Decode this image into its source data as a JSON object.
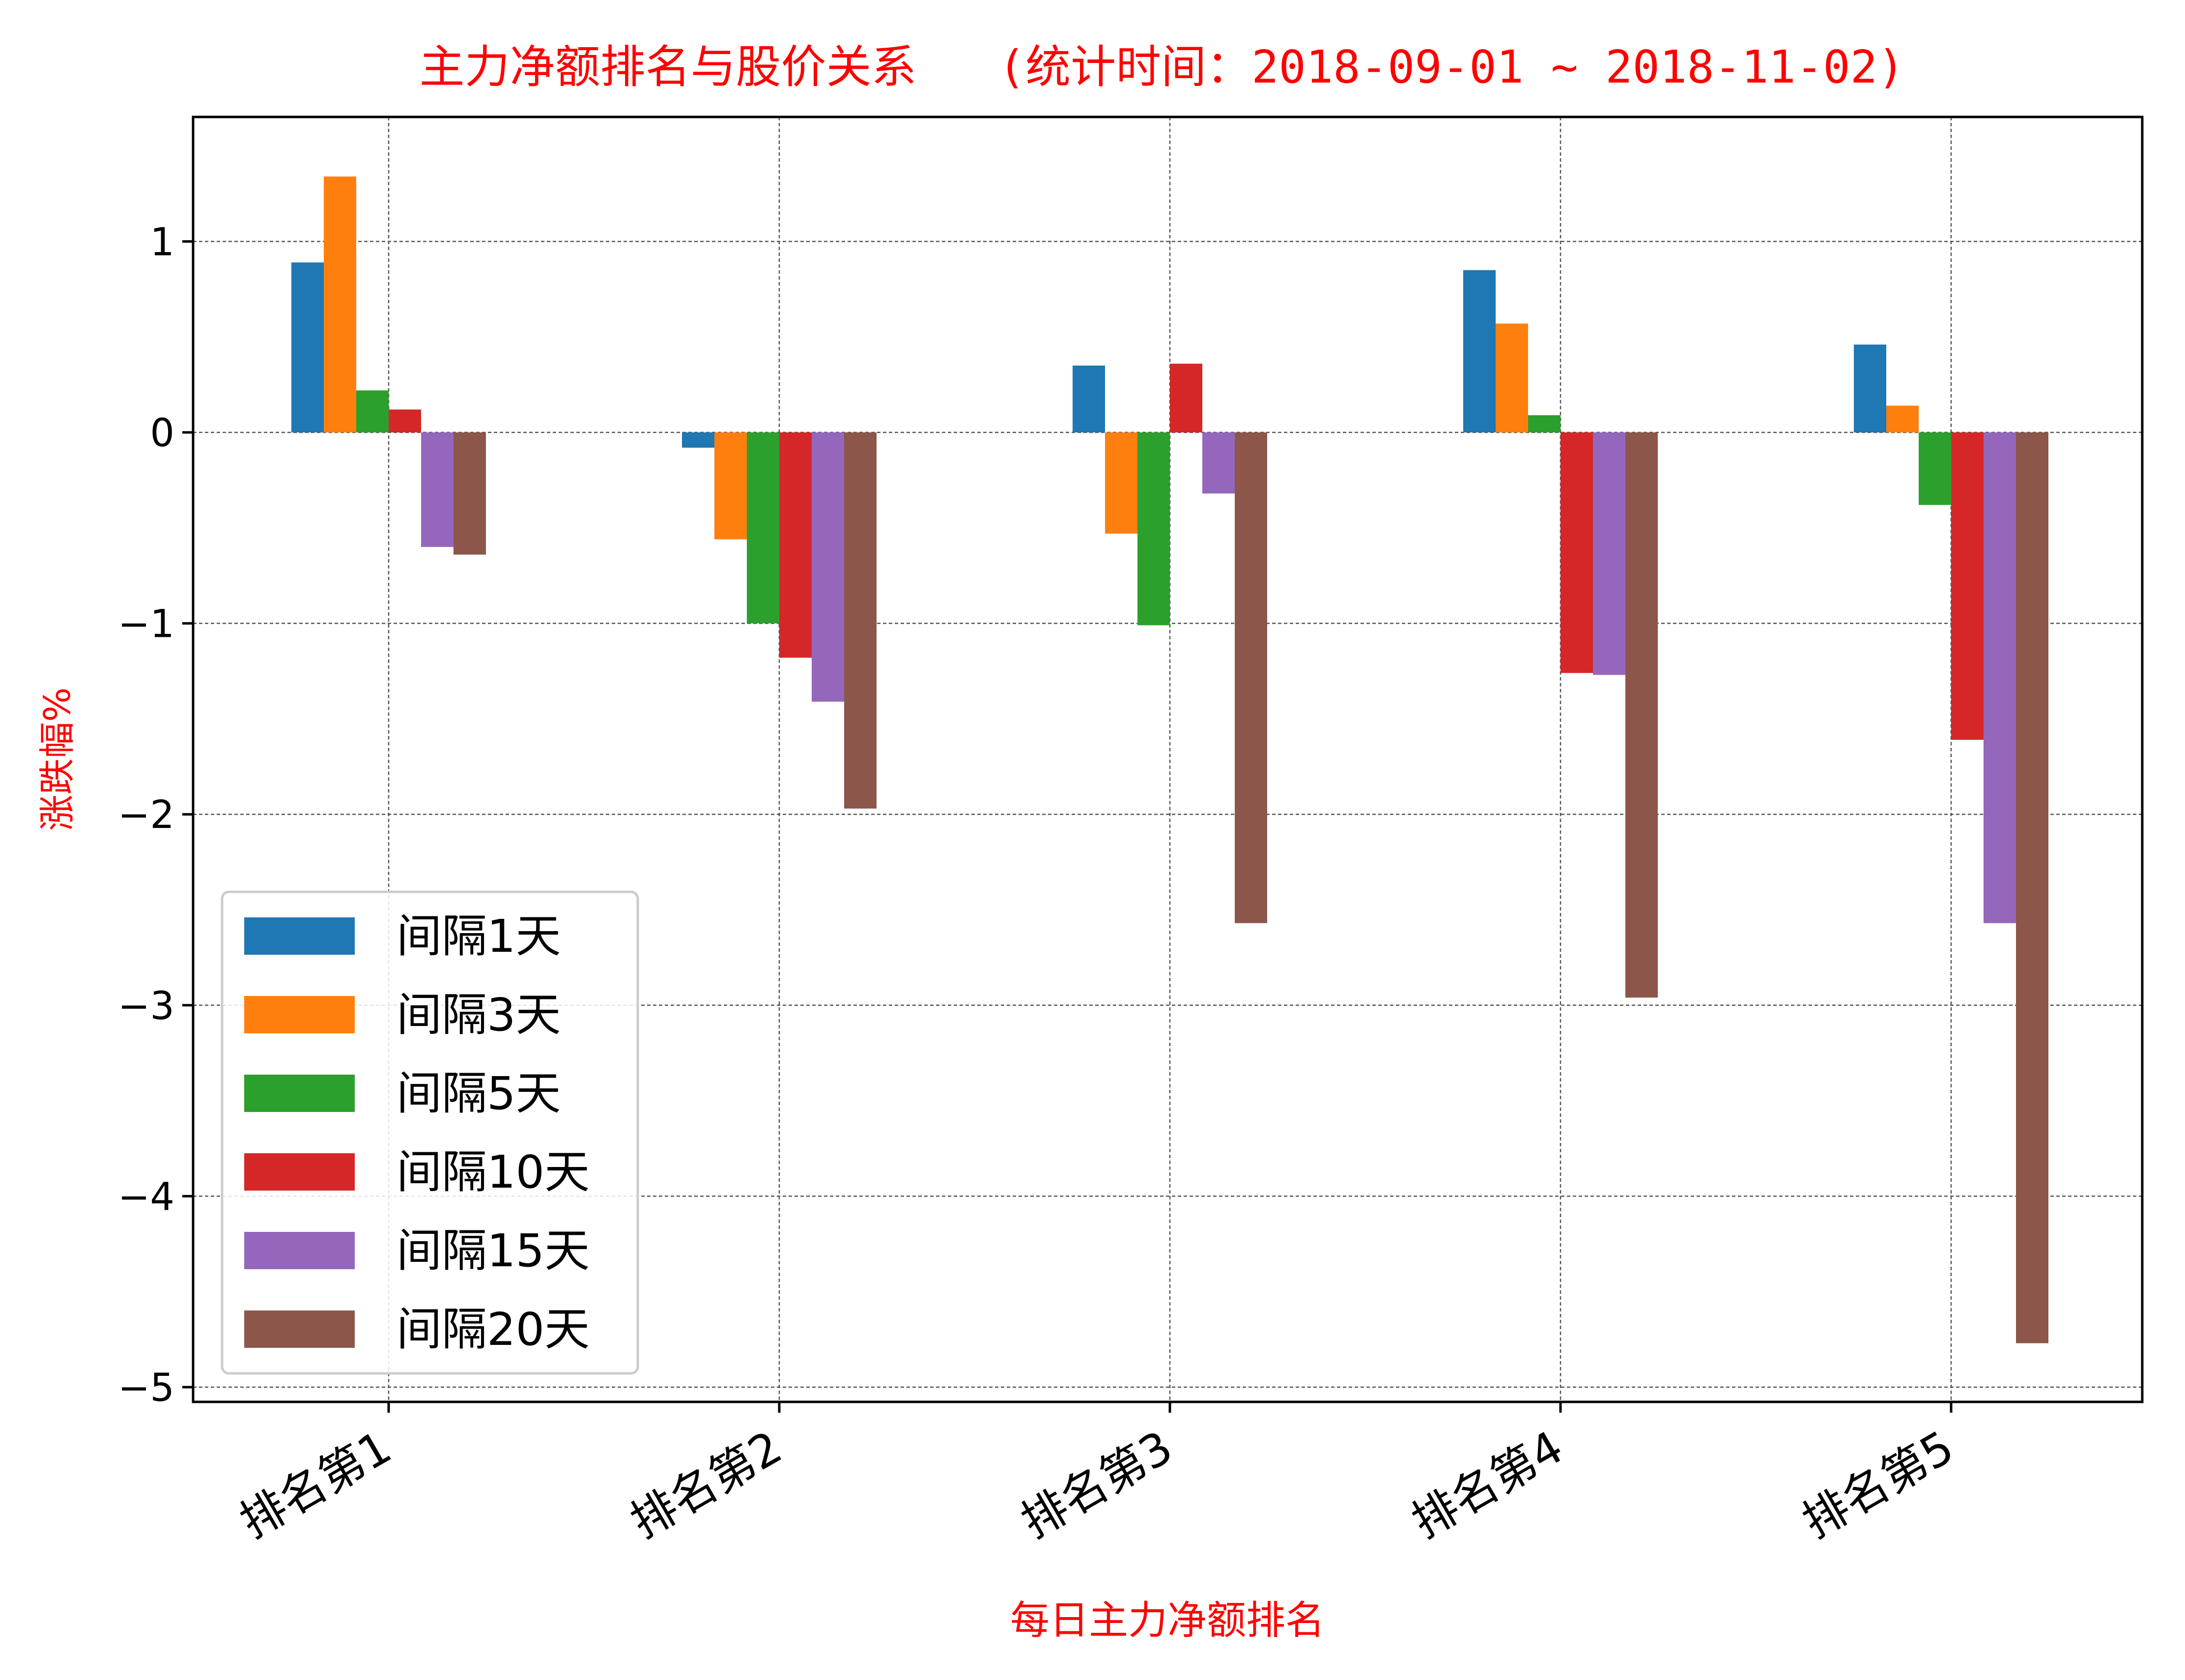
{
  "chart_data": {
    "type": "bar",
    "title": "主力净额排名与股价关系   (统计时间：2018-09-01 ~ 2018-11-02)",
    "xlabel": "每日主力净额排名",
    "ylabel": "涨跌幅%",
    "ylim": [
      -5.08,
      1.65
    ],
    "yticks": [
      1,
      0,
      -1,
      -2,
      -3,
      -4,
      -5
    ],
    "ytick_labels": [
      "1",
      "0",
      "−1",
      "−2",
      "−3",
      "−4",
      "−5"
    ],
    "grid": true,
    "legend_position": "lower-left",
    "categories": [
      "排名第1",
      "排名第2",
      "排名第3",
      "排名第4",
      "排名第5"
    ],
    "series": [
      {
        "name": "间隔1天",
        "color": "#1f77b4",
        "values": [
          0.89,
          -0.08,
          0.35,
          0.85,
          0.46
        ]
      },
      {
        "name": "间隔3天",
        "color": "#ff7f0e",
        "values": [
          1.34,
          -0.56,
          -0.53,
          0.57,
          0.14
        ]
      },
      {
        "name": "间隔5天",
        "color": "#2ca02c",
        "values": [
          0.22,
          -1.0,
          -1.01,
          0.09,
          -0.38
        ]
      },
      {
        "name": "间隔10天",
        "color": "#d62728",
        "values": [
          0.12,
          -1.18,
          0.36,
          -1.26,
          -1.61
        ]
      },
      {
        "name": "间隔15天",
        "color": "#9467bd",
        "values": [
          -0.6,
          -1.41,
          -0.32,
          -1.27,
          -2.57
        ]
      },
      {
        "name": "间隔20天",
        "color": "#8c564b",
        "values": [
          -0.64,
          -1.97,
          -2.57,
          -2.96,
          -4.77
        ]
      }
    ],
    "colors": {
      "title": "#ff0000",
      "axis_label": "#ff0000",
      "grid": "#555555",
      "axes": "#000000",
      "text": "#000000"
    }
  }
}
